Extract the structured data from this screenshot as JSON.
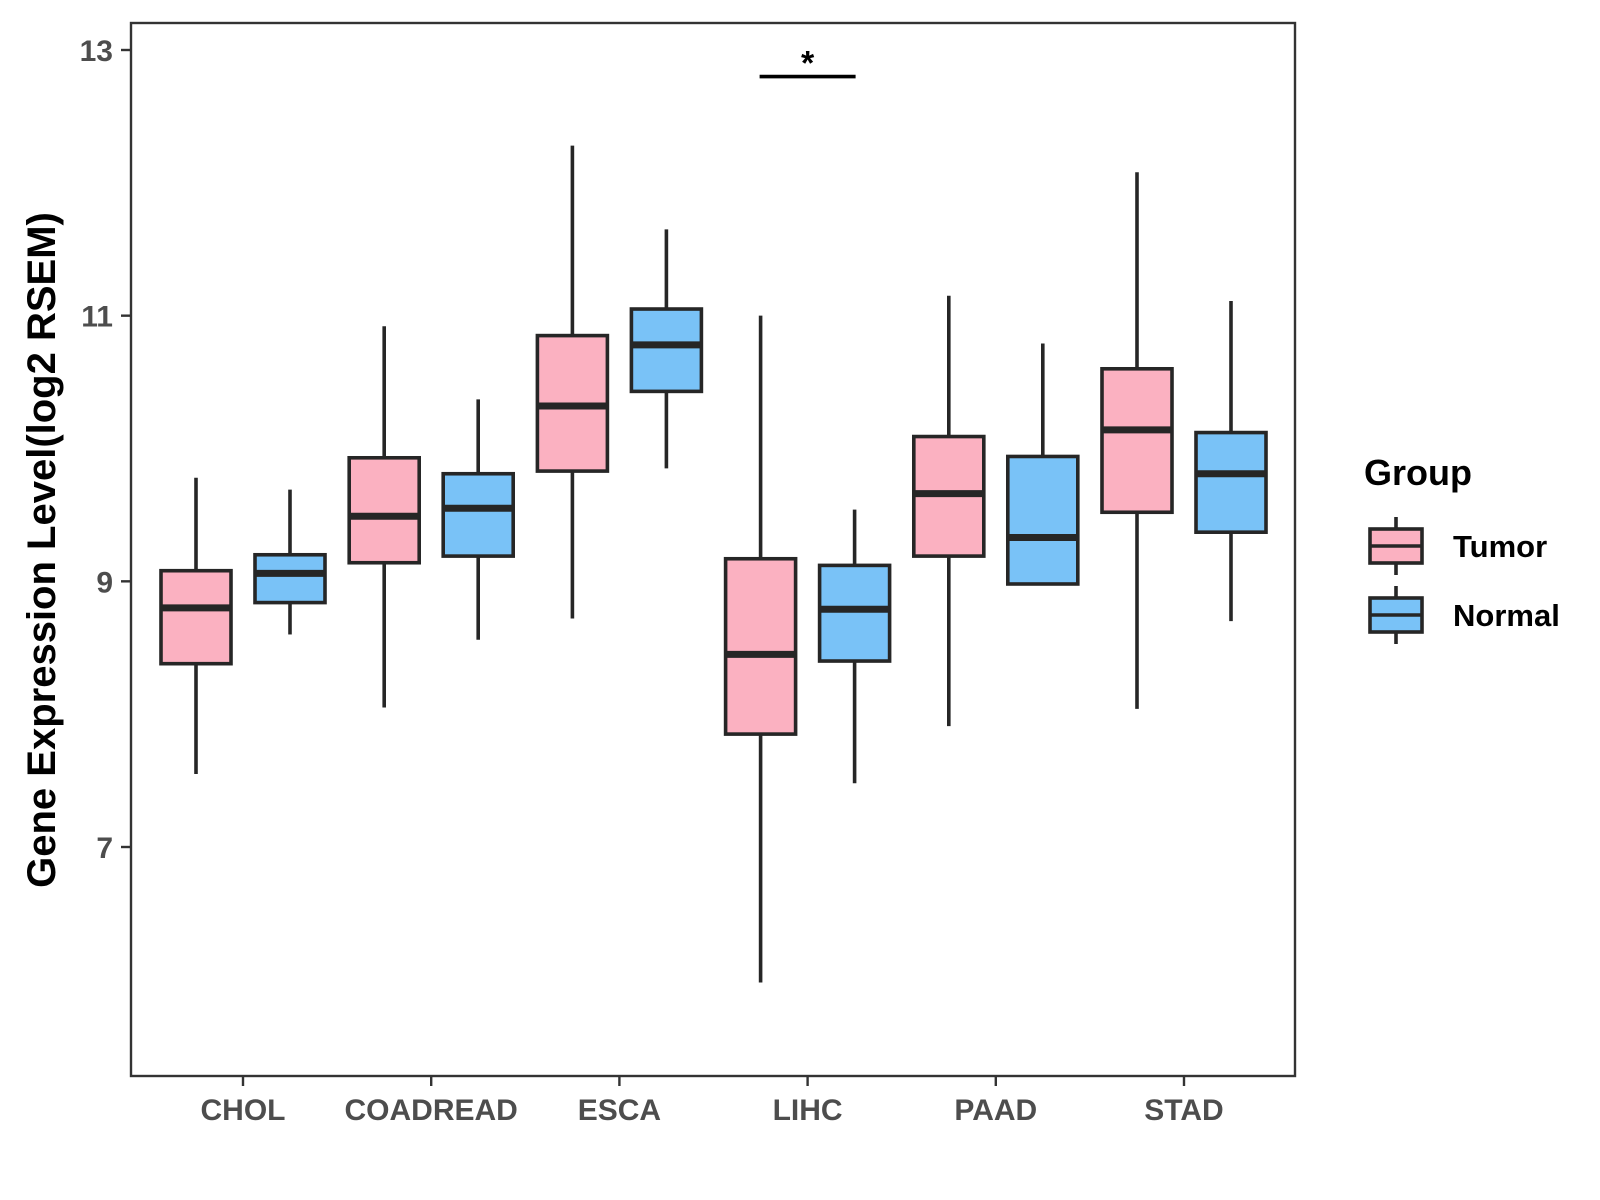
{
  "chart_data": {
    "type": "boxplot",
    "title": "",
    "xlabel": "",
    "ylabel": "Gene Expression Level(log2 RSEM)",
    "ylim": [
      5.3,
      13.2
    ],
    "yticks": [
      7,
      9,
      11,
      13
    ],
    "grid": false,
    "categories": [
      "CHOL",
      "COADREAD",
      "ESCA",
      "LIHC",
      "PAAD",
      "STAD"
    ],
    "series": [
      {
        "name": "Tumor",
        "color": "#fbb1c1",
        "boxes": [
          {
            "min": 7.55,
            "q1": 8.38,
            "median": 8.8,
            "q3": 9.08,
            "max": 9.78
          },
          {
            "min": 8.05,
            "q1": 9.14,
            "median": 9.49,
            "q3": 9.93,
            "max": 10.92
          },
          {
            "min": 8.72,
            "q1": 9.83,
            "median": 10.32,
            "q3": 10.85,
            "max": 12.28
          },
          {
            "min": 5.98,
            "q1": 7.85,
            "median": 8.45,
            "q3": 9.17,
            "max": 11.0
          },
          {
            "min": 7.91,
            "q1": 9.19,
            "median": 9.66,
            "q3": 10.09,
            "max": 11.15
          },
          {
            "min": 8.04,
            "q1": 9.52,
            "median": 10.14,
            "q3": 10.6,
            "max": 12.08
          }
        ]
      },
      {
        "name": "Normal",
        "color": "#79c2f7",
        "boxes": [
          {
            "min": 8.6,
            "q1": 8.84,
            "median": 9.06,
            "q3": 9.2,
            "max": 9.69
          },
          {
            "min": 8.56,
            "q1": 9.19,
            "median": 9.55,
            "q3": 9.81,
            "max": 10.37
          },
          {
            "min": 9.85,
            "q1": 10.43,
            "median": 10.78,
            "q3": 11.05,
            "max": 11.65
          },
          {
            "min": 7.48,
            "q1": 8.4,
            "median": 8.79,
            "q3": 9.12,
            "max": 9.54
          },
          {
            "min": null,
            "q1": 8.98,
            "median": 9.33,
            "q3": 9.94,
            "max": 10.79
          },
          {
            "min": 8.7,
            "q1": 9.37,
            "median": 9.81,
            "q3": 10.12,
            "max": 11.11
          }
        ]
      }
    ],
    "legend": {
      "title": "Group",
      "position": "right",
      "entries": [
        "Tumor",
        "Normal"
      ]
    },
    "annotations": [
      {
        "category": "LIHC",
        "text": "*",
        "y": 12.8
      }
    ]
  }
}
